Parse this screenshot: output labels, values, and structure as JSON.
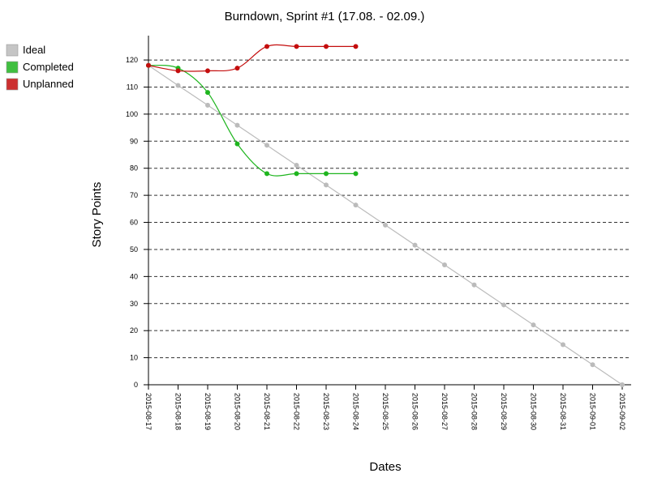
{
  "chart_data": {
    "type": "line",
    "title": "Burndown, Sprint #1 (17.08. - 02.09.)",
    "xlabel": "Dates",
    "ylabel": "Story Points",
    "categories": [
      "2015-08-17",
      "2015-08-18",
      "2015-08-19",
      "2015-08-20",
      "2015-08-21",
      "2015-08-22",
      "2015-08-23",
      "2015-08-24",
      "2015-08-25",
      "2015-08-26",
      "2015-08-27",
      "2015-08-28",
      "2015-08-29",
      "2015-08-30",
      "2015-08-31",
      "2015-09-01",
      "2015-09-02"
    ],
    "series": [
      {
        "name": "Ideal",
        "color": "#bbbbbb",
        "values": [
          118,
          110.6,
          103.3,
          95.9,
          88.5,
          81.1,
          73.8,
          66.4,
          59,
          51.6,
          44.3,
          36.9,
          29.5,
          22.1,
          14.8,
          7.4,
          0
        ]
      },
      {
        "name": "Completed",
        "color": "#1fb51f",
        "values": [
          118,
          117,
          108,
          89,
          78,
          78,
          78,
          78,
          null,
          null,
          null,
          null,
          null,
          null,
          null,
          null,
          null
        ]
      },
      {
        "name": "Unplanned",
        "color": "#c40d0d",
        "values": [
          118,
          116,
          116,
          117,
          125,
          125,
          125,
          125,
          null,
          null,
          null,
          null,
          null,
          null,
          null,
          null,
          null
        ]
      }
    ],
    "ylim": [
      0,
      129
    ],
    "yticks": [
      0,
      10,
      20,
      30,
      40,
      50,
      60,
      70,
      80,
      90,
      100,
      110,
      120
    ],
    "grid": true,
    "legend": "top-left"
  }
}
